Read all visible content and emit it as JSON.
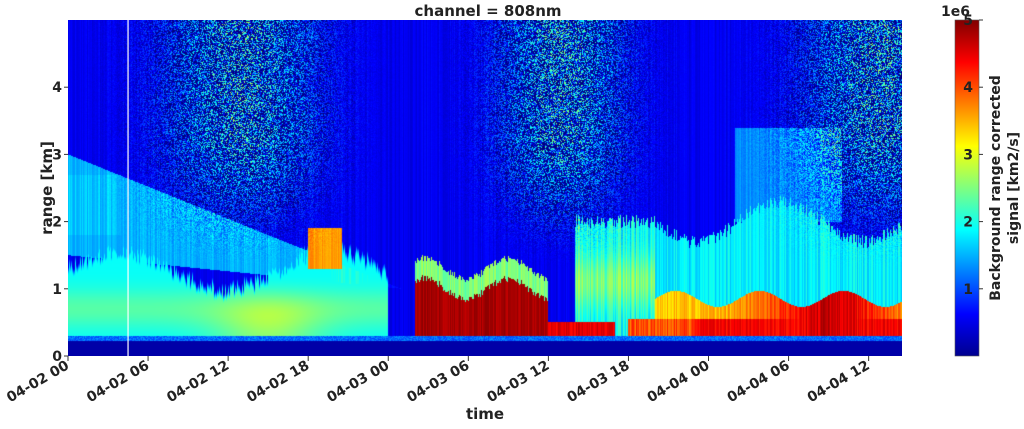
{
  "chart_data": {
    "type": "heatmap",
    "title": "channel = 808nm",
    "xlabel": "time",
    "ylabel": "range [km]",
    "x_ticks": [
      "04-02 00",
      "04-02 06",
      "04-02 12",
      "04-02 18",
      "04-03 00",
      "04-03 06",
      "04-03 12",
      "04-03 18",
      "04-04 00",
      "04-04 06",
      "04-04 12"
    ],
    "y_ticks": [
      "0",
      "1",
      "2",
      "3",
      "4"
    ],
    "xlim_hours": [
      0,
      62.5
    ],
    "ylim_km": [
      0,
      5
    ],
    "colorbar": {
      "label_line1": "Background range corrected",
      "label_line2": "signal [km2/s]",
      "multiplier": "1e6",
      "ticks": [
        "1",
        "2",
        "3",
        "4",
        "5"
      ],
      "range": [
        0,
        5
      ],
      "colormap": "jet"
    },
    "marker_line_hour": 4.5,
    "features": [
      {
        "kind": "surface_layer",
        "range_km": [
          0,
          0.3
        ],
        "value": 0.2
      },
      {
        "kind": "boundary_layer_day1",
        "time_hours": [
          0,
          24
        ],
        "top_km": 1.3,
        "value": 2.5
      },
      {
        "kind": "dense_layer_day2",
        "time_hours": [
          26,
          36
        ],
        "range_km": [
          0.3,
          1.1
        ],
        "value": 5.0
      },
      {
        "kind": "dense_layer_day3",
        "time_hours": [
          42,
          62.5
        ],
        "range_km": [
          0.3,
          0.8
        ],
        "value": 4.5
      },
      {
        "kind": "elevated_aerosol",
        "time_hours": [
          0,
          26
        ],
        "range_km": [
          1.5,
          3.0
        ],
        "value": 1.8
      }
    ]
  }
}
